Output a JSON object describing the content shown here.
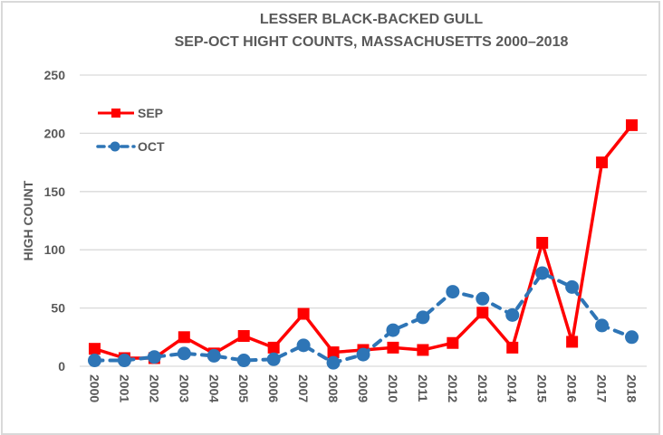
{
  "chart_data": {
    "type": "line",
    "title_lines": [
      "LESSER BLACK-BACKED GULL",
      "SEP-OCT HIGHT COUNTS,  MASSACHUSETTS 2000–2018"
    ],
    "xlabel": "",
    "ylabel": "HIGH COUNT",
    "ylim": [
      0,
      250
    ],
    "yticks": [
      "0",
      "50",
      "100",
      "150",
      "200",
      "250"
    ],
    "ytick_values": [
      0,
      50,
      100,
      150,
      200,
      250
    ],
    "grid": true,
    "legend_position": "top-left",
    "categories": [
      "2000",
      "2001",
      "2002",
      "2003",
      "2004",
      "2005",
      "2006",
      "2007",
      "2008",
      "2009",
      "2010",
      "2011",
      "2012",
      "2013",
      "2014",
      "2015",
      "2016",
      "2017",
      "2018"
    ],
    "series": [
      {
        "name": "SEP",
        "color": "#ff0000",
        "marker": "square",
        "style": "solid",
        "values": [
          15,
          7,
          7,
          25,
          11,
          26,
          16,
          45,
          12,
          14,
          16,
          14,
          20,
          46,
          16,
          106,
          21,
          175,
          207
        ]
      },
      {
        "name": "OCT",
        "color": "#2e75b6",
        "marker": "circle",
        "style": "dashed",
        "values": [
          5,
          5,
          8,
          11,
          9,
          5,
          6,
          18,
          3,
          10,
          31,
          42,
          64,
          58,
          44,
          80,
          68,
          35,
          25
        ]
      }
    ]
  }
}
